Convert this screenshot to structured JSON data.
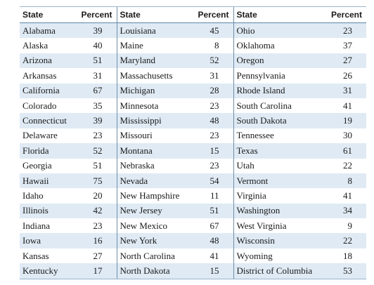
{
  "headers": [
    "State",
    "Percent",
    "State",
    "Percent",
    "State",
    "Percent"
  ],
  "rows": [
    [
      {
        "state": "Alabama",
        "percent": "39"
      },
      {
        "state": "Louisiana",
        "percent": "45"
      },
      {
        "state": "Ohio",
        "percent": "23"
      }
    ],
    [
      {
        "state": "Alaska",
        "percent": "40"
      },
      {
        "state": "Maine",
        "percent": "8"
      },
      {
        "state": "Oklahoma",
        "percent": "37"
      }
    ],
    [
      {
        "state": "Arizona",
        "percent": "51"
      },
      {
        "state": "Maryland",
        "percent": "52"
      },
      {
        "state": "Oregon",
        "percent": "27"
      }
    ],
    [
      {
        "state": "Arkansas",
        "percent": "31"
      },
      {
        "state": "Massachusetts",
        "percent": "31"
      },
      {
        "state": "Pennsylvania",
        "percent": "26"
      }
    ],
    [
      {
        "state": "California",
        "percent": "67"
      },
      {
        "state": "Michigan",
        "percent": "28"
      },
      {
        "state": "Rhode Island",
        "percent": "31"
      }
    ],
    [
      {
        "state": "Colorado",
        "percent": "35"
      },
      {
        "state": "Minnesota",
        "percent": "23"
      },
      {
        "state": "South Carolina",
        "percent": "41"
      }
    ],
    [
      {
        "state": "Connecticut",
        "percent": "39"
      },
      {
        "state": "Mississippi",
        "percent": "48"
      },
      {
        "state": "South Dakota",
        "percent": "19"
      }
    ],
    [
      {
        "state": "Delaware",
        "percent": "23"
      },
      {
        "state": "Missouri",
        "percent": "23"
      },
      {
        "state": "Tennessee",
        "percent": "30"
      }
    ],
    [
      {
        "state": "Florida",
        "percent": "52"
      },
      {
        "state": "Montana",
        "percent": "15"
      },
      {
        "state": "Texas",
        "percent": "61"
      }
    ],
    [
      {
        "state": "Georgia",
        "percent": "51"
      },
      {
        "state": "Nebraska",
        "percent": "23"
      },
      {
        "state": "Utah",
        "percent": "22"
      }
    ],
    [
      {
        "state": "Hawaii",
        "percent": "75"
      },
      {
        "state": "Nevada",
        "percent": "54"
      },
      {
        "state": "Vermont",
        "percent": "8"
      }
    ],
    [
      {
        "state": "Idaho",
        "percent": "20"
      },
      {
        "state": "New Hampshire",
        "percent": "11"
      },
      {
        "state": "Virginia",
        "percent": "41"
      }
    ],
    [
      {
        "state": "Illinois",
        "percent": "42"
      },
      {
        "state": "New Jersey",
        "percent": "51"
      },
      {
        "state": "Washington",
        "percent": "34"
      }
    ],
    [
      {
        "state": "Indiana",
        "percent": "23"
      },
      {
        "state": "New Mexico",
        "percent": "67"
      },
      {
        "state": "West Virginia",
        "percent": "9"
      }
    ],
    [
      {
        "state": "Iowa",
        "percent": "16"
      },
      {
        "state": "New York",
        "percent": "48"
      },
      {
        "state": "Wisconsin",
        "percent": "22"
      }
    ],
    [
      {
        "state": "Kansas",
        "percent": "27"
      },
      {
        "state": "North Carolina",
        "percent": "41"
      },
      {
        "state": "Wyoming",
        "percent": "18"
      }
    ],
    [
      {
        "state": "Kentucky",
        "percent": "17"
      },
      {
        "state": "North Dakota",
        "percent": "15"
      },
      {
        "state": "District of Columbia",
        "percent": "53"
      }
    ]
  ]
}
